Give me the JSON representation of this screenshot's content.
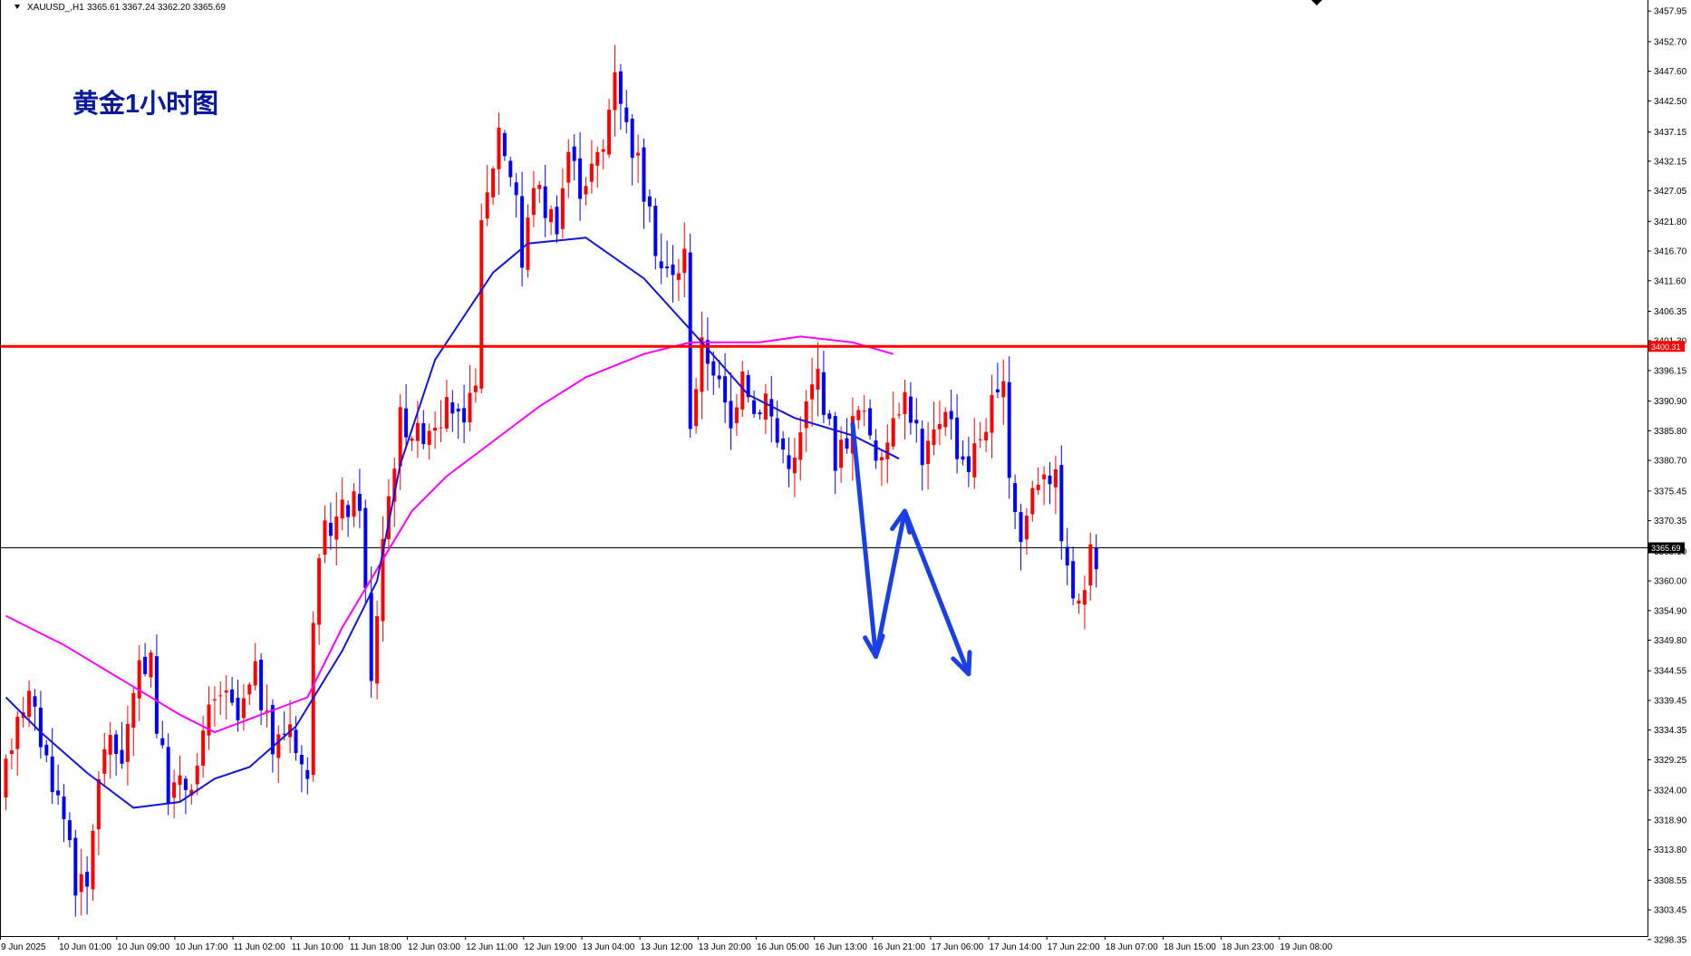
{
  "header": {
    "symbol": "XAUUSD_,H1",
    "ohlc": "3365.61 3367.24 3362.20 3365.69"
  },
  "chart_data": {
    "type": "candlestick",
    "title": "黄金1小时图",
    "symbol": "XAUUSD_",
    "timeframe": "H1",
    "current_ohlc": {
      "open": 3365.61,
      "high": 3367.24,
      "low": 3362.2,
      "close": 3365.69
    },
    "ylim": [
      3298.95,
      3459.85
    ],
    "y_ticks": [
      3457.95,
      3452.7,
      3447.6,
      3442.5,
      3437.15,
      3432.15,
      3427.05,
      3421.8,
      3416.7,
      3411.6,
      3406.35,
      3401.3,
      3396.15,
      3390.9,
      3385.8,
      3380.7,
      3375.45,
      3370.35,
      3365.1,
      3360.0,
      3354.9,
      3349.8,
      3344.55,
      3339.45,
      3334.35,
      3329.25,
      3324.0,
      3318.9,
      3313.8,
      3308.55,
      3303.45,
      3298.35
    ],
    "x_labels": [
      "9 Jun 2025",
      "10 Jun 01:00",
      "10 Jun 09:00",
      "10 Jun 17:00",
      "11 Jun 02:00",
      "11 Jun 10:00",
      "11 Jun 18:00",
      "12 Jun 03:00",
      "12 Jun 11:00",
      "12 Jun 19:00",
      "13 Jun 04:00",
      "13 Jun 12:00",
      "13 Jun 20:00",
      "16 Jun 05:00",
      "16 Jun 13:00",
      "16 Jun 21:00",
      "17 Jun 06:00",
      "17 Jun 14:00",
      "17 Jun 22:00",
      "18 Jun 07:00",
      "18 Jun 15:00",
      "18 Jun 23:00",
      "19 Jun 08:00"
    ],
    "resistance_level": 3400.31,
    "current_price": 3365.69,
    "up_color": "#ff0000",
    "down_color": "#0000ff",
    "line_colors": {
      "fast_ma": "#1414dc",
      "slow_ma": "#ff00ff",
      "resistance": "#ff0000",
      "current_price": "#000000",
      "projection": "#1a3fe6"
    },
    "fast_ma": [
      [
        0,
        3340
      ],
      [
        6,
        3334
      ],
      [
        14,
        3327
      ],
      [
        22,
        3321
      ],
      [
        30,
        3322
      ],
      [
        36,
        3326
      ],
      [
        42,
        3328
      ],
      [
        50,
        3335
      ],
      [
        58,
        3348
      ],
      [
        64,
        3360
      ],
      [
        68,
        3380
      ],
      [
        74,
        3398
      ],
      [
        80,
        3407
      ],
      [
        84,
        3413
      ],
      [
        90,
        3418
      ],
      [
        100,
        3419
      ],
      [
        110,
        3412
      ],
      [
        120,
        3401
      ],
      [
        128,
        3392
      ],
      [
        136,
        3388
      ],
      [
        146,
        3385
      ],
      [
        154,
        3381
      ]
    ],
    "slow_ma": [
      [
        0,
        3354
      ],
      [
        10,
        3349
      ],
      [
        20,
        3343
      ],
      [
        30,
        3337
      ],
      [
        36,
        3334
      ],
      [
        44,
        3337
      ],
      [
        52,
        3340
      ],
      [
        58,
        3352
      ],
      [
        64,
        3362
      ],
      [
        70,
        3372
      ],
      [
        76,
        3378
      ],
      [
        84,
        3384
      ],
      [
        92,
        3390
      ],
      [
        100,
        3395
      ],
      [
        110,
        3399
      ],
      [
        118,
        3401
      ],
      [
        130,
        3401
      ],
      [
        137,
        3402
      ],
      [
        146,
        3401
      ],
      [
        153,
        3399
      ]
    ],
    "projection": [
      [
        146,
        3387
      ],
      [
        150,
        3347
      ],
      [
        155,
        3372
      ],
      [
        166,
        3344
      ]
    ],
    "candles": []
  }
}
